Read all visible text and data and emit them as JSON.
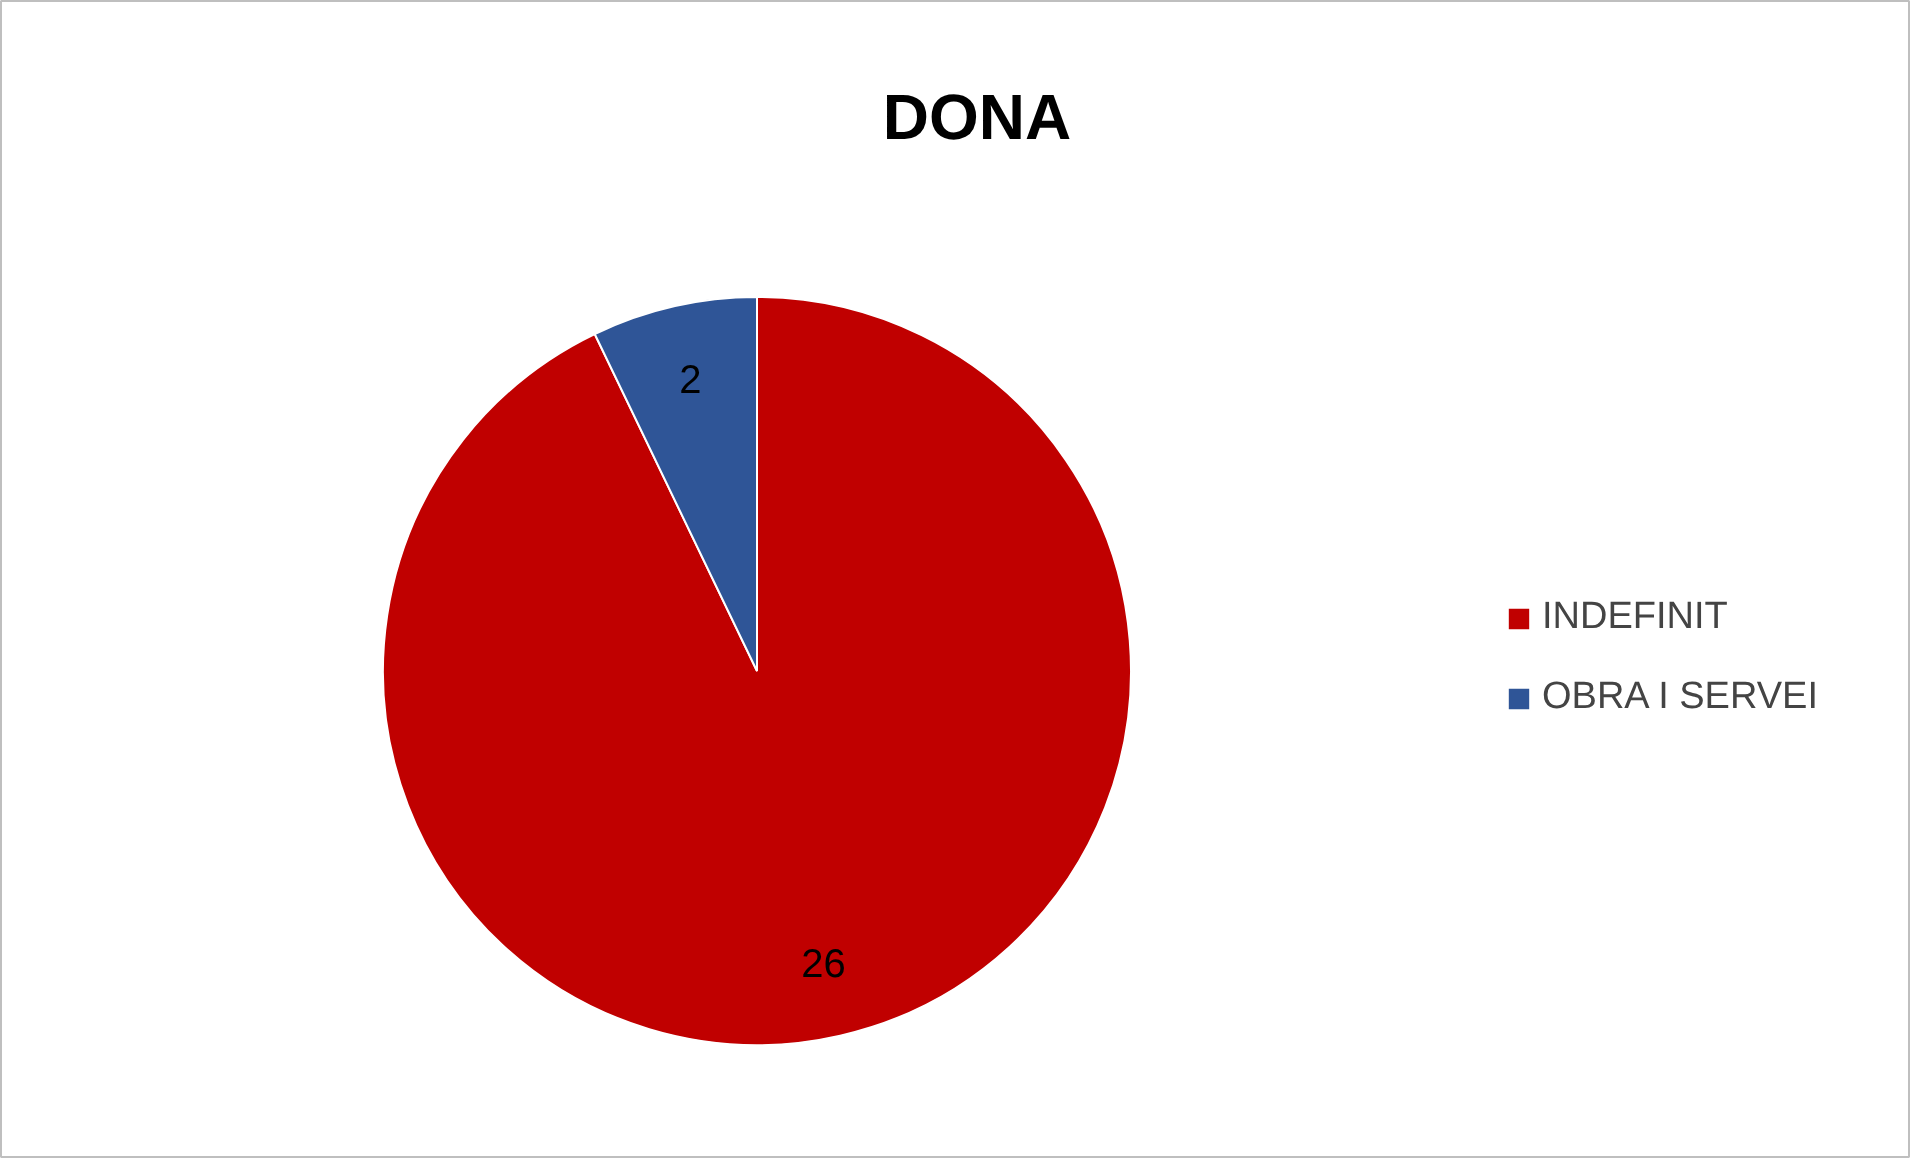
{
  "chart_data": {
    "type": "pie",
    "title": "DONA",
    "categories": [
      "INDEFINIT",
      "OBRA I SERVEI"
    ],
    "values": [
      26,
      2
    ],
    "colors": [
      "#c00000",
      "#2f5597"
    ],
    "data_labels": true,
    "legend": "right"
  }
}
